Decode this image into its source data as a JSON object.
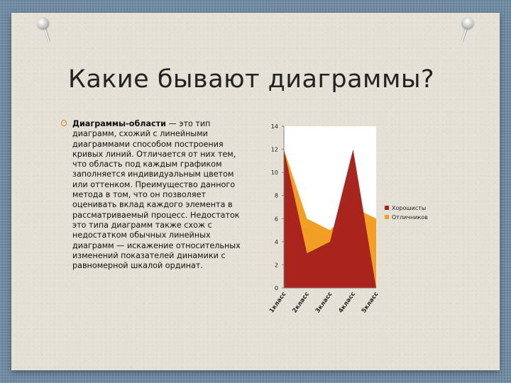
{
  "slide": {
    "title": "Какие бывают диаграммы?",
    "bullet_term": "Диаграммы-области",
    "bullet_text": " — это тип диаграмм, схожий с линейными диаграммами способом построения кривых линий. Отличается от них тем, что область под каждым графиком заполняется индивидуальным цветом или оттенком. Преимущество данного метода в том, что он позволяет оценивать вклад каждого элемента в рассматриваемый процесс. Недостаток это типа диаграмм также схож с недостатком обычных линейных диаграмм — искажение относительных изменений показателей динамики с равномерной шкалой ординат."
  },
  "colors": {
    "series_1": "#a8241c",
    "series_2": "#f2a024",
    "bullet": "#e07a10"
  },
  "chart_data": {
    "type": "area",
    "categories": [
      "1класс",
      "2класс",
      "3класс",
      "4класс",
      "5класс"
    ],
    "series": [
      {
        "name": "Хорошисты",
        "values": [
          12,
          3,
          4,
          12,
          0
        ]
      },
      {
        "name": "Отличников",
        "values": [
          12,
          6,
          5,
          7,
          6
        ]
      }
    ],
    "yticks": [
      "0",
      "2",
      "4",
      "6",
      "8",
      "10",
      "12",
      "14"
    ],
    "ylim": [
      0,
      14
    ],
    "legend": "right",
    "grid": false
  }
}
